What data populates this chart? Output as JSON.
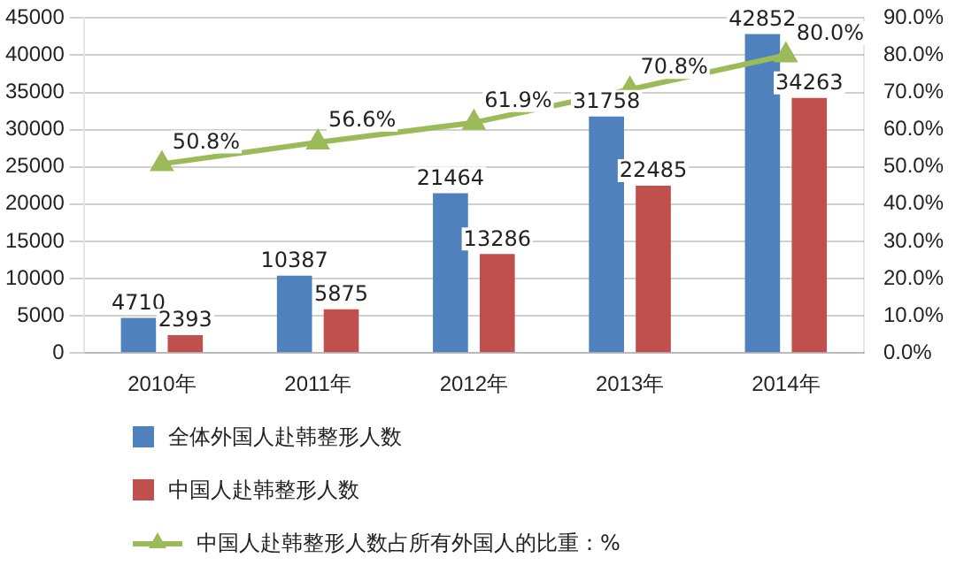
{
  "chart_data": {
    "type": "bar",
    "categories": [
      "2010年",
      "2011年",
      "2012年",
      "2013年",
      "2014年"
    ],
    "series": [
      {
        "name": "全体外国人赴韩整形人数",
        "color": "#4f81bd",
        "values": [
          4710,
          10387,
          21464,
          31758,
          42852
        ],
        "value_labels": [
          "4710",
          "10387",
          "21464",
          "31758",
          "42852"
        ]
      },
      {
        "name": "中国人赴韩整形人数",
        "color": "#c0504d",
        "values": [
          2393,
          5875,
          13286,
          22485,
          34263
        ],
        "value_labels": [
          "2393",
          "5875",
          "13286",
          "22485",
          "34263"
        ]
      },
      {
        "name": "中国人赴韩整形人数占所有外国人的比重：%",
        "color": "#9bbb59",
        "type": "line",
        "axis": "y2",
        "marker": "triangle",
        "values": [
          50.8,
          56.6,
          61.9,
          70.8,
          80.0
        ],
        "value_labels": [
          "50.8%",
          "56.6%",
          "61.9%",
          "70.8%",
          "80.0%"
        ]
      }
    ],
    "ylim": [
      0,
      45000
    ],
    "yticks": [
      0,
      5000,
      10000,
      15000,
      20000,
      25000,
      30000,
      35000,
      40000,
      45000
    ],
    "y2lim": [
      0,
      90
    ],
    "y2ticks": [
      {
        "value": 0,
        "label": "0.0%"
      },
      {
        "value": 10,
        "label": "10.0%"
      },
      {
        "value": 20,
        "label": "20.0%"
      },
      {
        "value": 30,
        "label": "30.0%"
      },
      {
        "value": 40,
        "label": "40.0%"
      },
      {
        "value": 50,
        "label": "50.0%"
      },
      {
        "value": 60,
        "label": "60.0%"
      },
      {
        "value": 70,
        "label": "70.0%"
      },
      {
        "value": 80,
        "label": "80.0%"
      },
      {
        "value": 90,
        "label": "90.0%"
      }
    ],
    "grid": "y",
    "legend": "bottom"
  }
}
